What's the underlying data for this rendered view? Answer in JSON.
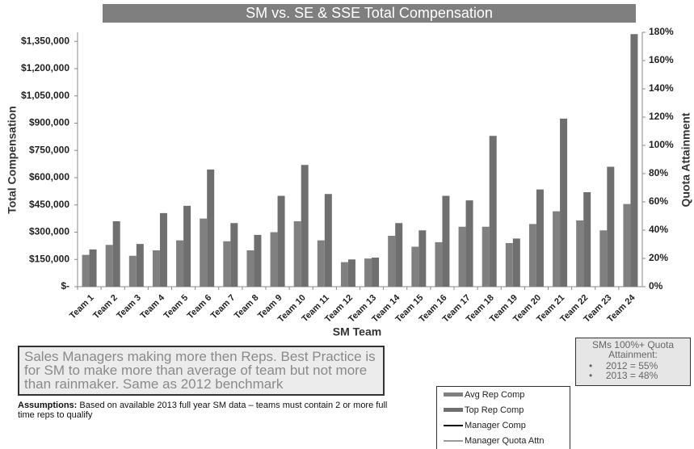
{
  "chart_data": {
    "type": "bar",
    "title": "SM vs. SE & SSE Total Compensation",
    "xlabel": "SM Team",
    "ylabel": "Total Compensation",
    "y2label": "Quota Attainment",
    "categories": [
      "Team 1",
      "Team 2",
      "Team 3",
      "Team 4",
      "Team 5",
      "Team 6",
      "Team 7",
      "Team 8",
      "Team 9",
      "Team 10",
      "Team 11",
      "Team 12",
      "Team 13",
      "Team 14",
      "Team 15",
      "Team 16",
      "Team 17",
      "Team 18",
      "Team 19",
      "Team 20",
      "Team 21",
      "Team 22",
      "Team 23",
      "Team 24"
    ],
    "series": [
      {
        "name": "Avg Rep Comp",
        "type": "bar",
        "color": "#808080",
        "values": [
          175000,
          230000,
          170000,
          200000,
          255000,
          375000,
          250000,
          200000,
          300000,
          360000,
          255000,
          135000,
          155000,
          280000,
          220000,
          245000,
          330000,
          330000,
          240000,
          345000,
          415000,
          365000,
          310000,
          455000
        ]
      },
      {
        "name": "Top Rep Comp",
        "type": "bar",
        "color": "#6f6f6f",
        "values": [
          205000,
          360000,
          235000,
          405000,
          445000,
          645000,
          350000,
          285000,
          500000,
          670000,
          510000,
          150000,
          160000,
          350000,
          310000,
          500000,
          475000,
          830000,
          265000,
          535000,
          925000,
          520000,
          660000,
          1390000
        ]
      },
      {
        "name": "Manager Comp",
        "type": "line",
        "color": "#000000",
        "values": [
          null,
          null,
          null,
          null,
          null,
          null,
          null,
          null,
          null,
          null,
          null,
          null,
          null,
          null,
          null,
          null,
          null,
          null,
          null,
          null,
          null,
          null,
          null,
          null
        ]
      },
      {
        "name": "Manager Quota Attn",
        "type": "line",
        "color": "#9a9a9a",
        "axis": "y2",
        "values": [
          null,
          null,
          null,
          null,
          null,
          null,
          null,
          null,
          null,
          null,
          null,
          null,
          null,
          null,
          null,
          null,
          null,
          null,
          null,
          null,
          null,
          null,
          null,
          null
        ]
      }
    ],
    "ylim": [
      0,
      1400000
    ],
    "yticks": [
      {
        "value": 0,
        "label": "$-"
      },
      {
        "value": 150000,
        "label": "$150,000"
      },
      {
        "value": 300000,
        "label": "$300,000"
      },
      {
        "value": 450000,
        "label": "$450,000"
      },
      {
        "value": 600000,
        "label": "$600,000"
      },
      {
        "value": 750000,
        "label": "$750,000"
      },
      {
        "value": 900000,
        "label": "$900,000"
      },
      {
        "value": 1050000,
        "label": "$1,050,000"
      },
      {
        "value": 1200000,
        "label": "$1,200,000"
      },
      {
        "value": 1350000,
        "label": "$1,350,000"
      }
    ],
    "y2lim": [
      0,
      180
    ],
    "y2ticks": [
      {
        "value": 0,
        "label": "0%"
      },
      {
        "value": 20,
        "label": "20%"
      },
      {
        "value": 40,
        "label": "40%"
      },
      {
        "value": 60,
        "label": "60%"
      },
      {
        "value": 80,
        "label": "80%"
      },
      {
        "value": 100,
        "label": "100%"
      },
      {
        "value": 120,
        "label": "120%"
      },
      {
        "value": 140,
        "label": "140%"
      },
      {
        "value": 160,
        "label": "160%"
      },
      {
        "value": 180,
        "label": "180%"
      }
    ],
    "grid": false
  },
  "notes": {
    "callout": "Sales Managers making more then Reps.  Best Practice is for SM to make more than average of team but not more than rainmaker. Same as 2012 benchmark",
    "assumptions_label": "Assumptions:",
    "assumptions_text": "Based on available 2013 full year SM data – teams must contain 2 or more full time reps to qualify",
    "box_title": "SMs 100%+ Quota Attainment:",
    "box_items": [
      "2012 = 55%",
      "2013 = 48%"
    ]
  }
}
